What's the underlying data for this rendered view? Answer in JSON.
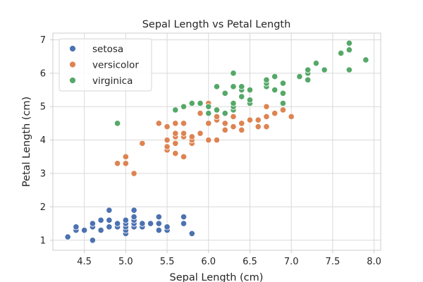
{
  "chart_data": {
    "type": "scatter",
    "title": "Sepal Length vs Petal Length",
    "xlabel": "Sepal Length (cm)",
    "ylabel": "Petal Length (cm)",
    "xlim": [
      4.12,
      8.08
    ],
    "ylim": [
      0.7,
      7.2
    ],
    "xticks": [
      "4.5",
      "5.0",
      "5.5",
      "6.0",
      "6.5",
      "7.0",
      "7.5",
      "8.0"
    ],
    "yticks": [
      "1",
      "2",
      "3",
      "4",
      "5",
      "6",
      "7"
    ],
    "grid": true,
    "legend": "top-left",
    "series": [
      {
        "name": "setosa",
        "color": "#4c72b0",
        "points": [
          [
            4.3,
            1.1
          ],
          [
            4.4,
            1.3
          ],
          [
            4.4,
            1.4
          ],
          [
            4.5,
            1.3
          ],
          [
            4.6,
            1.0
          ],
          [
            4.6,
            1.4
          ],
          [
            4.6,
            1.5
          ],
          [
            4.7,
            1.3
          ],
          [
            4.7,
            1.6
          ],
          [
            4.8,
            1.4
          ],
          [
            4.8,
            1.6
          ],
          [
            4.8,
            1.9
          ],
          [
            4.9,
            1.4
          ],
          [
            4.9,
            1.5
          ],
          [
            5.0,
            1.2
          ],
          [
            5.0,
            1.3
          ],
          [
            5.0,
            1.4
          ],
          [
            5.0,
            1.5
          ],
          [
            5.0,
            1.6
          ],
          [
            5.1,
            1.4
          ],
          [
            5.1,
            1.5
          ],
          [
            5.1,
            1.6
          ],
          [
            5.1,
            1.7
          ],
          [
            5.1,
            1.9
          ],
          [
            5.2,
            1.4
          ],
          [
            5.2,
            1.5
          ],
          [
            5.3,
            1.5
          ],
          [
            5.4,
            1.3
          ],
          [
            5.4,
            1.5
          ],
          [
            5.4,
            1.7
          ],
          [
            5.5,
            1.3
          ],
          [
            5.5,
            1.4
          ],
          [
            5.7,
            1.5
          ],
          [
            5.7,
            1.7
          ],
          [
            5.8,
            1.2
          ]
        ]
      },
      {
        "name": "versicolor",
        "color": "#dd8452",
        "points": [
          [
            4.9,
            3.3
          ],
          [
            5.0,
            3.3
          ],
          [
            5.0,
            3.5
          ],
          [
            5.1,
            3.0
          ],
          [
            5.2,
            3.9
          ],
          [
            5.4,
            4.5
          ],
          [
            5.5,
            3.7
          ],
          [
            5.5,
            3.8
          ],
          [
            5.5,
            4.0
          ],
          [
            5.5,
            4.4
          ],
          [
            5.6,
            3.6
          ],
          [
            5.6,
            3.9
          ],
          [
            5.6,
            4.1
          ],
          [
            5.6,
            4.2
          ],
          [
            5.6,
            4.5
          ],
          [
            5.7,
            3.5
          ],
          [
            5.7,
            4.1
          ],
          [
            5.7,
            4.2
          ],
          [
            5.7,
            4.5
          ],
          [
            5.8,
            3.9
          ],
          [
            5.8,
            4.0
          ],
          [
            5.8,
            4.1
          ],
          [
            5.9,
            4.2
          ],
          [
            5.9,
            4.8
          ],
          [
            6.0,
            4.0
          ],
          [
            6.0,
            4.5
          ],
          [
            6.0,
            5.1
          ],
          [
            6.1,
            4.0
          ],
          [
            6.1,
            4.6
          ],
          [
            6.1,
            4.7
          ],
          [
            6.2,
            4.3
          ],
          [
            6.2,
            4.5
          ],
          [
            6.3,
            4.4
          ],
          [
            6.3,
            4.7
          ],
          [
            6.3,
            4.9
          ],
          [
            6.4,
            4.3
          ],
          [
            6.4,
            4.5
          ],
          [
            6.5,
            4.6
          ],
          [
            6.6,
            4.4
          ],
          [
            6.6,
            4.6
          ],
          [
            6.7,
            4.4
          ],
          [
            6.7,
            4.7
          ],
          [
            6.7,
            5.0
          ],
          [
            6.8,
            4.8
          ],
          [
            6.9,
            4.9
          ],
          [
            7.0,
            4.7
          ]
        ]
      },
      {
        "name": "virginica",
        "color": "#55a868",
        "points": [
          [
            4.9,
            4.5
          ],
          [
            5.6,
            4.9
          ],
          [
            5.7,
            5.0
          ],
          [
            5.8,
            5.1
          ],
          [
            5.9,
            5.1
          ],
          [
            6.0,
            4.8
          ],
          [
            6.0,
            5.0
          ],
          [
            6.1,
            4.9
          ],
          [
            6.1,
            5.6
          ],
          [
            6.2,
            4.8
          ],
          [
            6.2,
            5.4
          ],
          [
            6.3,
            4.9
          ],
          [
            6.3,
            5.0
          ],
          [
            6.3,
            5.1
          ],
          [
            6.3,
            5.6
          ],
          [
            6.3,
            6.0
          ],
          [
            6.4,
            5.3
          ],
          [
            6.4,
            5.5
          ],
          [
            6.4,
            5.6
          ],
          [
            6.5,
            5.1
          ],
          [
            6.5,
            5.2
          ],
          [
            6.5,
            5.5
          ],
          [
            6.7,
            5.6
          ],
          [
            6.7,
            5.7
          ],
          [
            6.7,
            5.8
          ],
          [
            6.8,
            5.5
          ],
          [
            6.8,
            5.9
          ],
          [
            6.9,
            5.1
          ],
          [
            6.9,
            5.4
          ],
          [
            6.9,
            5.7
          ],
          [
            7.1,
            5.9
          ],
          [
            7.2,
            5.8
          ],
          [
            7.2,
            6.0
          ],
          [
            7.2,
            6.1
          ],
          [
            7.3,
            6.3
          ],
          [
            7.4,
            6.1
          ],
          [
            7.6,
            6.6
          ],
          [
            7.7,
            6.1
          ],
          [
            7.7,
            6.7
          ],
          [
            7.7,
            6.9
          ],
          [
            7.9,
            6.4
          ]
        ]
      }
    ]
  }
}
